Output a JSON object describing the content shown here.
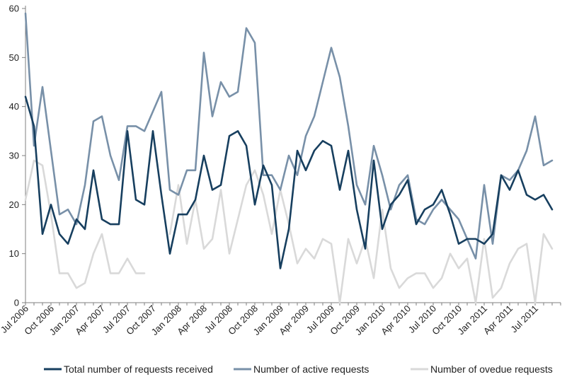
{
  "chart_data": {
    "type": "line",
    "title": "",
    "xlabel": "",
    "ylabel": "",
    "ylim": [
      0,
      60
    ],
    "yticks": [
      0,
      10,
      20,
      30,
      40,
      50,
      60
    ],
    "grid": false,
    "legend_position": "bottom",
    "x_tick_labels": [
      "Jul 2006",
      "Oct 2006",
      "Jan 2007",
      "Apr 2007",
      "Jul 2007",
      "Oct 2007",
      "Jan 2008",
      "Apr 2008",
      "Jul 2008",
      "Oct 2008",
      "Jan 2009",
      "Apr 2009",
      "Jul 2009",
      "Oct 2009",
      "Jan 2010",
      "Apr 2010",
      "Jul 2010",
      "Oct 2010",
      "Jan 2011",
      "Apr 2011",
      "Jul 2011"
    ],
    "x_tick_every_n_months": 3,
    "series": [
      {
        "name": "Total number of requests received",
        "color": "#173f5f",
        "values": [
          42,
          36,
          14,
          20,
          14,
          12,
          17,
          15,
          27,
          17,
          16,
          16,
          35,
          21,
          20,
          35,
          22,
          10,
          18,
          18,
          21,
          30,
          23,
          24,
          34,
          35,
          32,
          20,
          28,
          24,
          7,
          15,
          31,
          27,
          31,
          33,
          32,
          23,
          31,
          19,
          11,
          29,
          15,
          20,
          22,
          25,
          16,
          19,
          20,
          23,
          18,
          12,
          13,
          13,
          12,
          14,
          26,
          23,
          27,
          22,
          21,
          22,
          19
        ]
      },
      {
        "name": "Number of active requests",
        "color": "#7890a8",
        "values": [
          59,
          32,
          44,
          31,
          18,
          19,
          16,
          24,
          37,
          38,
          30,
          25,
          36,
          36,
          35,
          39,
          43,
          23,
          22,
          27,
          27,
          51,
          38,
          45,
          42,
          43,
          56,
          53,
          26,
          26,
          23,
          30,
          26,
          34,
          38,
          45,
          52,
          46,
          36,
          24,
          20,
          32,
          26,
          19,
          24,
          26,
          17,
          16,
          19,
          21,
          19,
          17,
          13,
          9,
          24,
          12,
          26,
          25,
          27,
          31,
          38,
          28,
          29
        ]
      },
      {
        "name": "Number of ovedue requests",
        "color": "#d9d9d9",
        "values": [
          21,
          29,
          28,
          18,
          6,
          6,
          3,
          4,
          10,
          14,
          6,
          6,
          9,
          6,
          6,
          null,
          null,
          14,
          24,
          12,
          21,
          11,
          13,
          23,
          10,
          17,
          24,
          27,
          22,
          14,
          23,
          16,
          8,
          11,
          9,
          13,
          12,
          0,
          13,
          8,
          13,
          5,
          19,
          7,
          3,
          5,
          6,
          6,
          3,
          5,
          10,
          7,
          9,
          0,
          13,
          1,
          3,
          8,
          11,
          12,
          0,
          14,
          11
        ]
      }
    ]
  }
}
